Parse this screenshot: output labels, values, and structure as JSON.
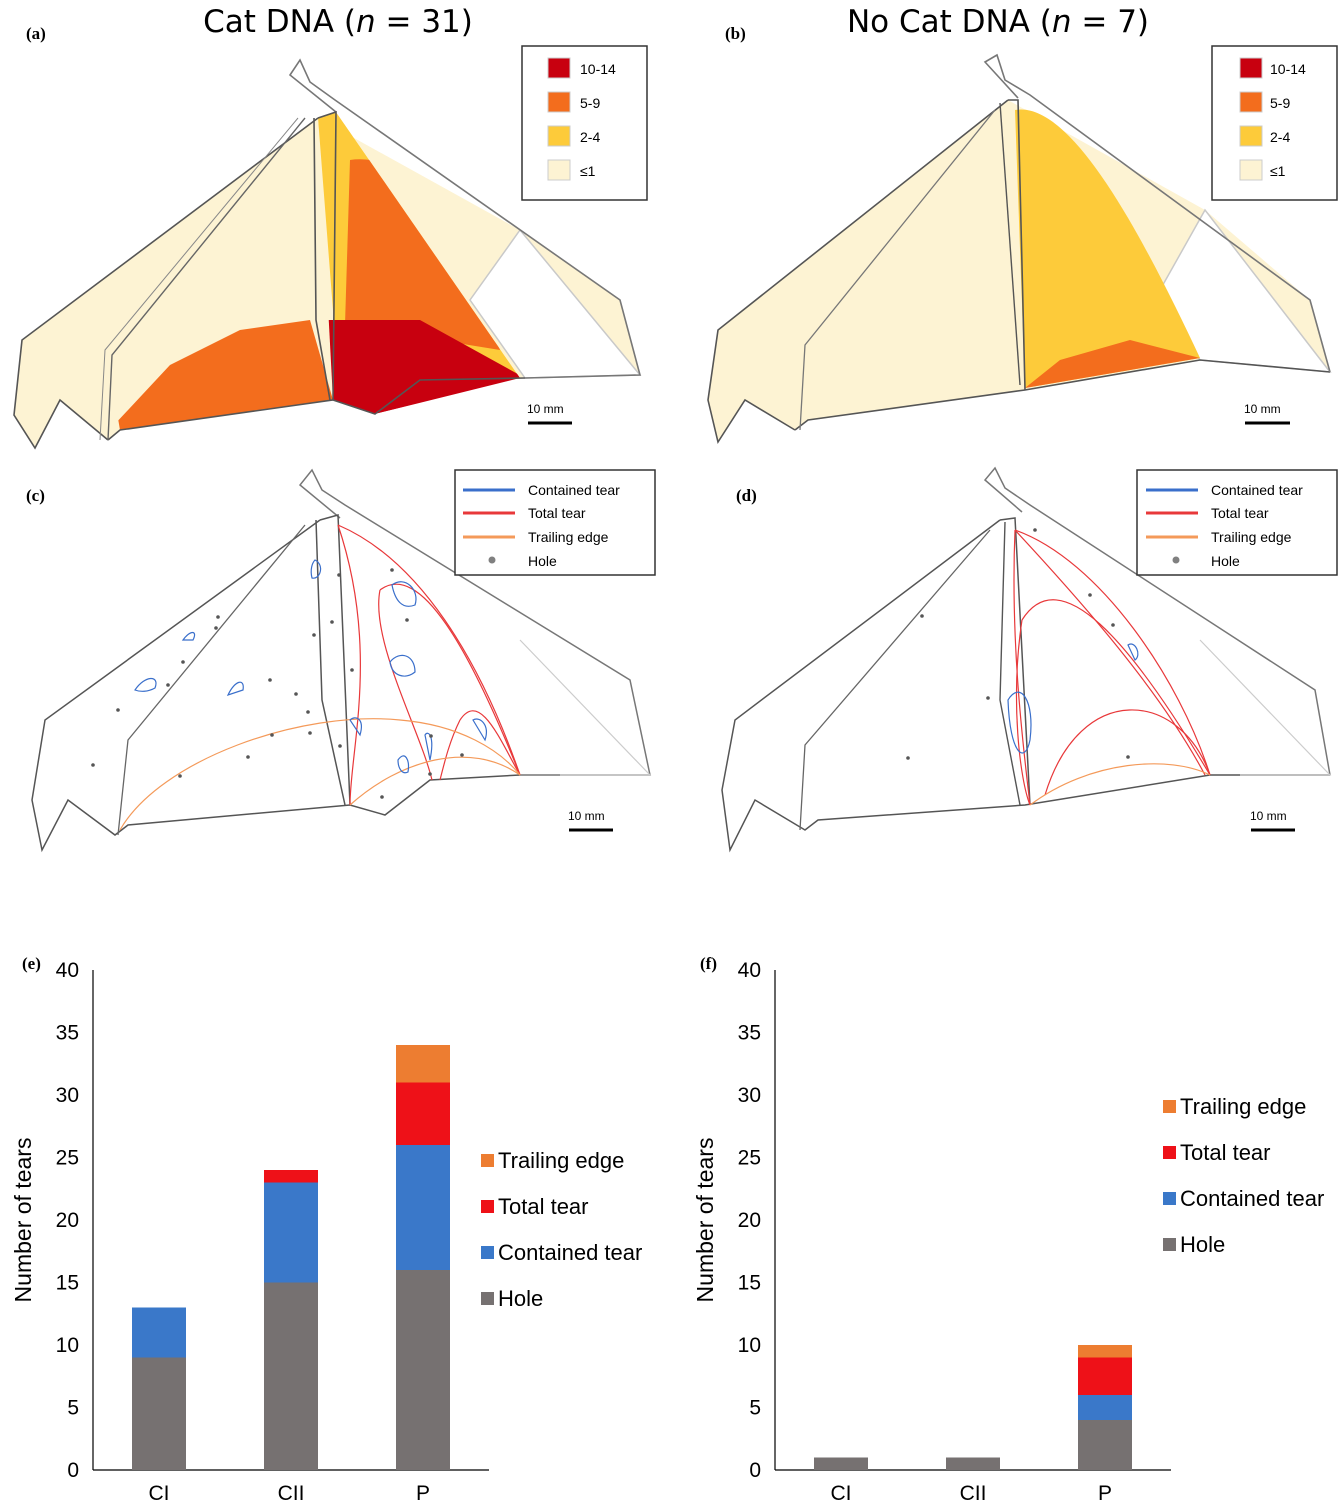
{
  "figure": {
    "panel_a": {
      "label": "(a)",
      "title_main": "Cat DNA (",
      "title_n": "n",
      "title_rest": " = 31)"
    },
    "panel_b": {
      "label": "(b)",
      "title_main": "No Cat DNA (",
      "title_n": "n",
      "title_rest": " = 7)"
    },
    "panel_c": {
      "label": "(c)"
    },
    "panel_d": {
      "label": "(d)"
    },
    "panel_e": {
      "label": "(e)"
    },
    "panel_f": {
      "label": "(f)"
    },
    "scale_bar": "10  mm",
    "density_legend": [
      {
        "label": "10-14",
        "color": "#c8000f"
      },
      {
        "label": "5-9",
        "color": "#f36d1d"
      },
      {
        "label": "2-4",
        "color": "#fdcb3a"
      },
      {
        "label": "≤1",
        "color": "#fdf3d3"
      }
    ],
    "damage_legend": [
      {
        "label": "Contained tear",
        "color": "#3a6fcb",
        "symbol": "line"
      },
      {
        "label": "Total tear",
        "color": "#e8383a",
        "symbol": "line"
      },
      {
        "label": "Trailing edge",
        "color": "#f49a5a",
        "symbol": "line"
      },
      {
        "label": "Hole",
        "color": "#808080",
        "symbol": "dot"
      }
    ]
  },
  "chart_data": [
    {
      "type": "bar",
      "stacked": true,
      "panel": "(e)",
      "categories": [
        "CI",
        "CII",
        "P"
      ],
      "ylabel": "Number of tears",
      "ylim": [
        0,
        40
      ],
      "yticks": [
        0,
        5,
        10,
        15,
        20,
        25,
        30,
        35,
        40
      ],
      "series": [
        {
          "name": "Hole",
          "color": "#767171",
          "values": [
            9,
            15,
            16
          ]
        },
        {
          "name": "Contained tear",
          "color": "#3a78c9",
          "values": [
            4,
            8,
            10
          ]
        },
        {
          "name": "Total tear",
          "color": "#ee1118",
          "values": [
            0,
            1,
            5
          ]
        },
        {
          "name": "Trailing edge",
          "color": "#ed7d31",
          "values": [
            0,
            0,
            3
          ]
        }
      ],
      "legend_order": [
        "Trailing edge",
        "Total tear",
        "Contained tear",
        "Hole"
      ]
    },
    {
      "type": "bar",
      "stacked": true,
      "panel": "(f)",
      "categories": [
        "CI",
        "CII",
        "P"
      ],
      "ylabel": "Number of tears",
      "ylim": [
        0,
        40
      ],
      "yticks": [
        0,
        5,
        10,
        15,
        20,
        25,
        30,
        35,
        40
      ],
      "series": [
        {
          "name": "Hole",
          "color": "#767171",
          "values": [
            1,
            1,
            4
          ]
        },
        {
          "name": "Contained tear",
          "color": "#3a78c9",
          "values": [
            0,
            0,
            2
          ]
        },
        {
          "name": "Total tear",
          "color": "#ee1118",
          "values": [
            0,
            0,
            3
          ]
        },
        {
          "name": "Trailing edge",
          "color": "#ed7d31",
          "values": [
            0,
            0,
            1
          ]
        }
      ],
      "legend_order": [
        "Trailing edge",
        "Total tear",
        "Contained tear",
        "Hole"
      ]
    }
  ]
}
